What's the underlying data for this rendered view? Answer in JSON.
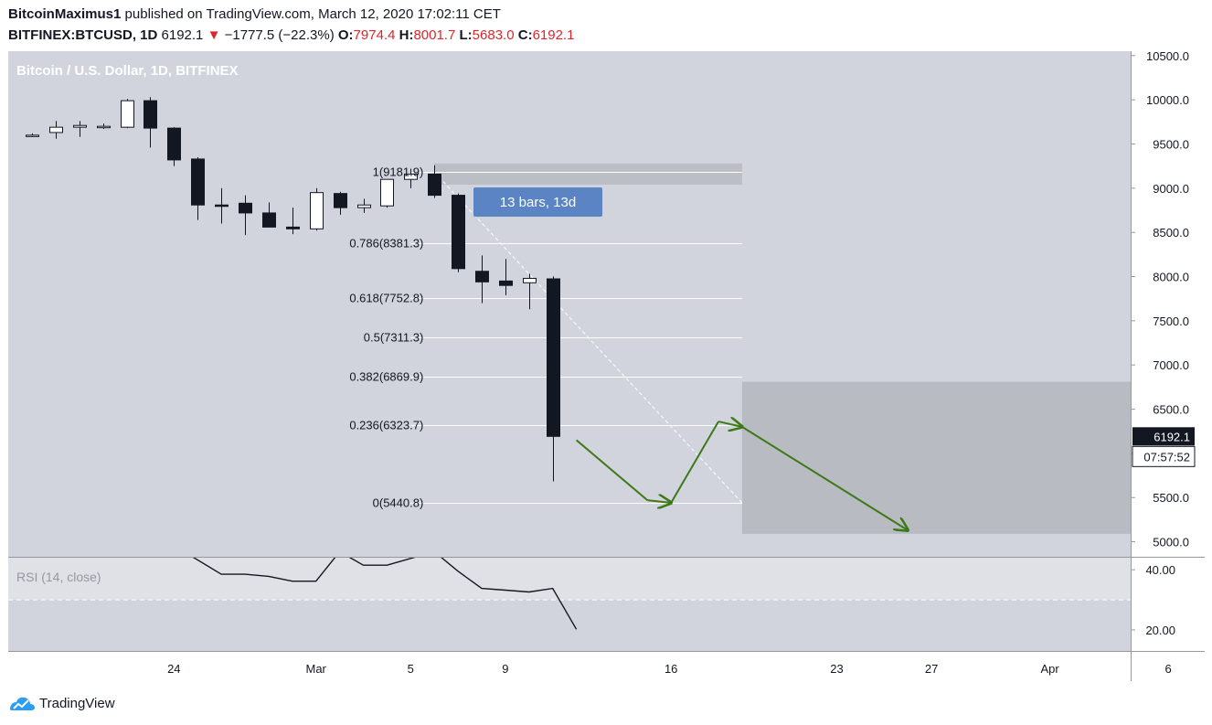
{
  "header": {
    "author": "BitcoinMaximus1",
    "published": "published on TradingView.com, March 12, 2020 17:02:11 CET",
    "symbol": "BITFINEX:BTCUSD, 1D",
    "price": "6192.1",
    "change_arrow": "▼",
    "change": "−1777.5 (−22.3%)",
    "o_label": "O:",
    "o_value": "7974.4",
    "h_label": "H:",
    "h_value": "8001.7",
    "l_label": "L:",
    "l_value": "5683.0",
    "c_label": "C:",
    "c_value": "6192.1"
  },
  "footer": {
    "brand": "TradingView",
    "logo_icon": "tradingview-logo-icon"
  },
  "colors": {
    "plot_bg": "#d1d4dc",
    "rsi_band": "#dfe1e6",
    "zone_gray": "#b9bbc2",
    "candle_up": "#ffffff",
    "candle_down": "#131722",
    "arrow_green": "#3d7a17",
    "label_blue": "#5b84c4",
    "price_tag": "#131722"
  },
  "chart_data": {
    "type": "candlestick",
    "title": "Bitcoin / U.S. Dollar, 1D, BITFINEX",
    "candles": [
      {
        "d": "2020-02-18",
        "o": 9600,
        "h": 9620,
        "l": 9580,
        "c": 9600
      },
      {
        "d": "2020-02-19",
        "o": 9630,
        "h": 9760,
        "l": 9560,
        "c": 9690
      },
      {
        "d": "2020-02-20",
        "o": 9690,
        "h": 9760,
        "l": 9580,
        "c": 9710
      },
      {
        "d": "2020-02-21",
        "o": 9690,
        "h": 9730,
        "l": 9670,
        "c": 9700
      },
      {
        "d": "2020-02-22",
        "o": 9690,
        "h": 10010,
        "l": 9680,
        "c": 9990
      },
      {
        "d": "2020-02-23",
        "o": 9990,
        "h": 10030,
        "l": 9460,
        "c": 9680
      },
      {
        "d": "2020-02-24",
        "o": 9680,
        "h": 9690,
        "l": 9250,
        "c": 9320
      },
      {
        "d": "2020-02-25",
        "o": 9330,
        "h": 9350,
        "l": 8640,
        "c": 8810
      },
      {
        "d": "2020-02-26",
        "o": 8810,
        "h": 9000,
        "l": 8600,
        "c": 8800
      },
      {
        "d": "2020-02-27",
        "o": 8830,
        "h": 8920,
        "l": 8470,
        "c": 8720
      },
      {
        "d": "2020-02-28",
        "o": 8720,
        "h": 8840,
        "l": 8560,
        "c": 8560
      },
      {
        "d": "2020-02-29",
        "o": 8560,
        "h": 8780,
        "l": 8480,
        "c": 8540
      },
      {
        "d": "2020-03-01",
        "o": 8540,
        "h": 9000,
        "l": 8520,
        "c": 8950
      },
      {
        "d": "2020-03-02",
        "o": 8940,
        "h": 8960,
        "l": 8700,
        "c": 8780
      },
      {
        "d": "2020-03-03",
        "o": 8780,
        "h": 8880,
        "l": 8720,
        "c": 8810
      },
      {
        "d": "2020-03-04",
        "o": 8800,
        "h": 9100,
        "l": 8780,
        "c": 9100
      },
      {
        "d": "2020-03-05",
        "o": 9100,
        "h": 9220,
        "l": 9000,
        "c": 9160
      },
      {
        "d": "2020-03-06",
        "o": 9160,
        "h": 9260,
        "l": 8890,
        "c": 8920
      },
      {
        "d": "2020-03-07",
        "o": 8920,
        "h": 8940,
        "l": 8050,
        "c": 8090
      },
      {
        "d": "2020-03-08",
        "o": 8060,
        "h": 8240,
        "l": 7700,
        "c": 7940
      },
      {
        "d": "2020-03-09",
        "o": 7950,
        "h": 8200,
        "l": 7790,
        "c": 7900
      },
      {
        "d": "2020-03-10",
        "o": 7930,
        "h": 8030,
        "l": 7630,
        "c": 7980
      },
      {
        "d": "2020-03-11",
        "o": 7974.4,
        "h": 8001.7,
        "l": 5683.0,
        "c": 6192.1
      }
    ],
    "y_axis": {
      "range": [
        4830,
        10550
      ],
      "tick_labels": [
        "10500.0",
        "10000.0",
        "9500.0",
        "9000.0",
        "8500.0",
        "8000.0",
        "7500.0",
        "7000.0",
        "6500.0",
        "6000.0",
        "5500.0",
        "5000.0"
      ]
    },
    "x_axis": {
      "ticks": [
        {
          "d": "2020-02-24",
          "label": "24"
        },
        {
          "d": "2020-03-01",
          "label": "Mar"
        },
        {
          "d": "2020-03-05",
          "label": "5"
        },
        {
          "d": "2020-03-09",
          "label": "9"
        },
        {
          "d": "2020-03-16",
          "label": "16"
        },
        {
          "d": "2020-03-23",
          "label": "23"
        },
        {
          "d": "2020-03-27",
          "label": "27"
        },
        {
          "d": "2020-04-01",
          "label": "Apr"
        },
        {
          "d": "2020-04-06",
          "label": "6"
        }
      ]
    },
    "fib_levels": [
      {
        "ratio": "1",
        "value": 9181.9
      },
      {
        "ratio": "0.786",
        "value": 8381.3
      },
      {
        "ratio": "0.618",
        "value": 7752.8
      },
      {
        "ratio": "0.5",
        "value": 7311.3
      },
      {
        "ratio": "0.382",
        "value": 6869.9
      },
      {
        "ratio": "0.236",
        "value": 6323.7
      },
      {
        "ratio": "0",
        "value": 5440.8
      }
    ],
    "fib_start_date": "2020-03-05",
    "fib_end_date": "2020-03-19",
    "fib_trend": {
      "d1": "2020-03-06",
      "v1": 9181.9,
      "d2": "2020-03-19",
      "v2": 5440.8
    },
    "resistance_zone": {
      "d1": "2020-03-06",
      "d2": "2020-03-19",
      "v1": 9040,
      "v2": 9280
    },
    "target_zone": {
      "d1": "2020-03-19",
      "d2": "2020-04-08",
      "v1": 5090,
      "v2": 6810
    },
    "bars_label": "13 bars, 13d",
    "projection_path": [
      {
        "d": "2020-03-12",
        "v": 6150
      },
      {
        "d": "2020-03-15",
        "v": 5470
      },
      {
        "d": "2020-03-16",
        "v": 5440
      },
      {
        "d": "2020-03-18",
        "v": 6360
      },
      {
        "d": "2020-03-19",
        "v": 6300
      },
      {
        "d": "2020-03-26",
        "v": 5130
      }
    ],
    "last_price_label": "6192.1",
    "countdown_label": "07:57:52",
    "rsi": {
      "title": "RSI (14, close)",
      "range": [
        13,
        44
      ],
      "tick_labels": [
        "40.00",
        "20.00"
      ],
      "reference_level": 30,
      "points": [
        {
          "d": "2020-02-24",
          "v": 48
        },
        {
          "d": "2020-02-26",
          "v": 38.5
        },
        {
          "d": "2020-02-27",
          "v": 38.5
        },
        {
          "d": "2020-02-28",
          "v": 37.8
        },
        {
          "d": "2020-02-29",
          "v": 36.2
        },
        {
          "d": "2020-03-01",
          "v": 36.2
        },
        {
          "d": "2020-03-02",
          "v": 46
        },
        {
          "d": "2020-03-03",
          "v": 41.5
        },
        {
          "d": "2020-03-04",
          "v": 41.5
        },
        {
          "d": "2020-03-06",
          "v": 46
        },
        {
          "d": "2020-03-07",
          "v": 39.5
        },
        {
          "d": "2020-03-08",
          "v": 33.8
        },
        {
          "d": "2020-03-09",
          "v": 33.2
        },
        {
          "d": "2020-03-10",
          "v": 32.6
        },
        {
          "d": "2020-03-11",
          "v": 33.8
        },
        {
          "d": "2020-03-12",
          "v": 20.2
        }
      ]
    }
  }
}
